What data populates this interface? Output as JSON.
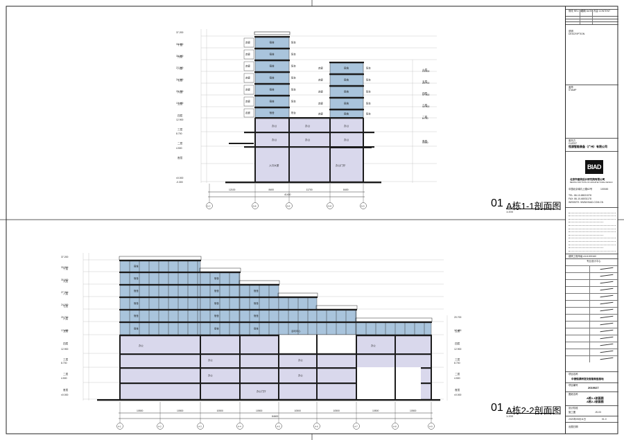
{
  "drawing1": {
    "number": "01",
    "title": "A栋1-1剖面图",
    "scale": "1:200",
    "levels_left": [
      "十层",
      "九层",
      "八层",
      "七层",
      "六层",
      "五层",
      "四层",
      "三层",
      "二层",
      "首层"
    ],
    "elev_left": [
      "37.200",
      "33.900",
      "30.600",
      "27.300",
      "24.000",
      "20.700",
      "17.400",
      "12.900",
      "8.700",
      "4.500",
      "±0.000",
      "-0.300"
    ],
    "levels_right": [
      "六层",
      "五层",
      "四层",
      "三层",
      "二层",
      "首层"
    ],
    "elev_right": [
      "23.100",
      "20.700",
      "17.400",
      "12.900",
      "8.700",
      "4.500"
    ],
    "dims": [
      "12100",
      "8400",
      "11700",
      "8400"
    ],
    "total": "41400",
    "axes": [
      "A-C",
      "A-B",
      "A-E",
      "A-M",
      "A-D"
    ],
    "rooms": {
      "suite": "宿舍",
      "corridor": "走廊",
      "balcony": "阳台",
      "office": "办公",
      "lobby": "入口大堂",
      "hall": "办公门厅"
    }
  },
  "drawing2": {
    "number": "01",
    "title": "A栋2-2剖面图",
    "scale": "1:200",
    "levels": [
      "十层",
      "九层",
      "八层",
      "七层",
      "六层",
      "五层",
      "四层",
      "三层",
      "二层",
      "首层"
    ],
    "elev": [
      "37.200",
      "33.900",
      "30.600",
      "27.300",
      "24.000",
      "20.700",
      "17.400",
      "12.900",
      "8.700",
      "4.500",
      "±0.000"
    ],
    "dims": [
      "10500",
      "10500",
      "10500",
      "10500",
      "10500",
      "10500",
      "10500",
      "10500"
    ],
    "total": "84600",
    "axes": [
      "A-1",
      "A-2",
      "A-3",
      "A-4",
      "A-5",
      "A-6",
      "A-7",
      "A-8",
      "A-9"
    ],
    "rooms": {
      "suite": "宿舍",
      "office": "办公",
      "lounge": "活动中心",
      "hall": "办公门厅"
    }
  },
  "titleblock": {
    "rev_header": [
      "修改 REV. NO.",
      "日期 DATE",
      "内容 CONTENT"
    ],
    "notes_label": "说明",
    "notes_en": "DESCRIPTION",
    "stamp_label": "盖章",
    "stamp_en": "STAMP",
    "client_label": "委托方",
    "client_en": "CLIENT",
    "client": "恒源智能装备（广州）有限公司",
    "logo": "BIAD",
    "institute_cn": "北京市建筑设计研究院有限公司",
    "institute_en": "BEIJING INSTITUTE OF ARCHITECTURAL DESIGN",
    "address": "中国北京南礼士路62号",
    "postcode": "100045",
    "tel": "TEL: 86-10-88021578",
    "fax": "FAX: 86-10-68031178",
    "website": "WEBSITE: WWW.BIAD.COM.CN",
    "license": "建筑工程甲级 A111000160",
    "dept": "专业设计中心",
    "project_label": "项目名称",
    "project": "中德恒源研发及智能制造基地",
    "project_no_label": "项目编号",
    "project_no": "2019027",
    "drawing_title_label": "图纸名称",
    "drawing_title_1": "A栋1-1剖面图",
    "drawing_title_2": "A栋2-2剖面图",
    "phase_label": "设计阶段",
    "phase": "施工图",
    "sheet_no": "JS-03",
    "date": "2020年05月11日",
    "version": "01.0",
    "print": "出图日期"
  }
}
